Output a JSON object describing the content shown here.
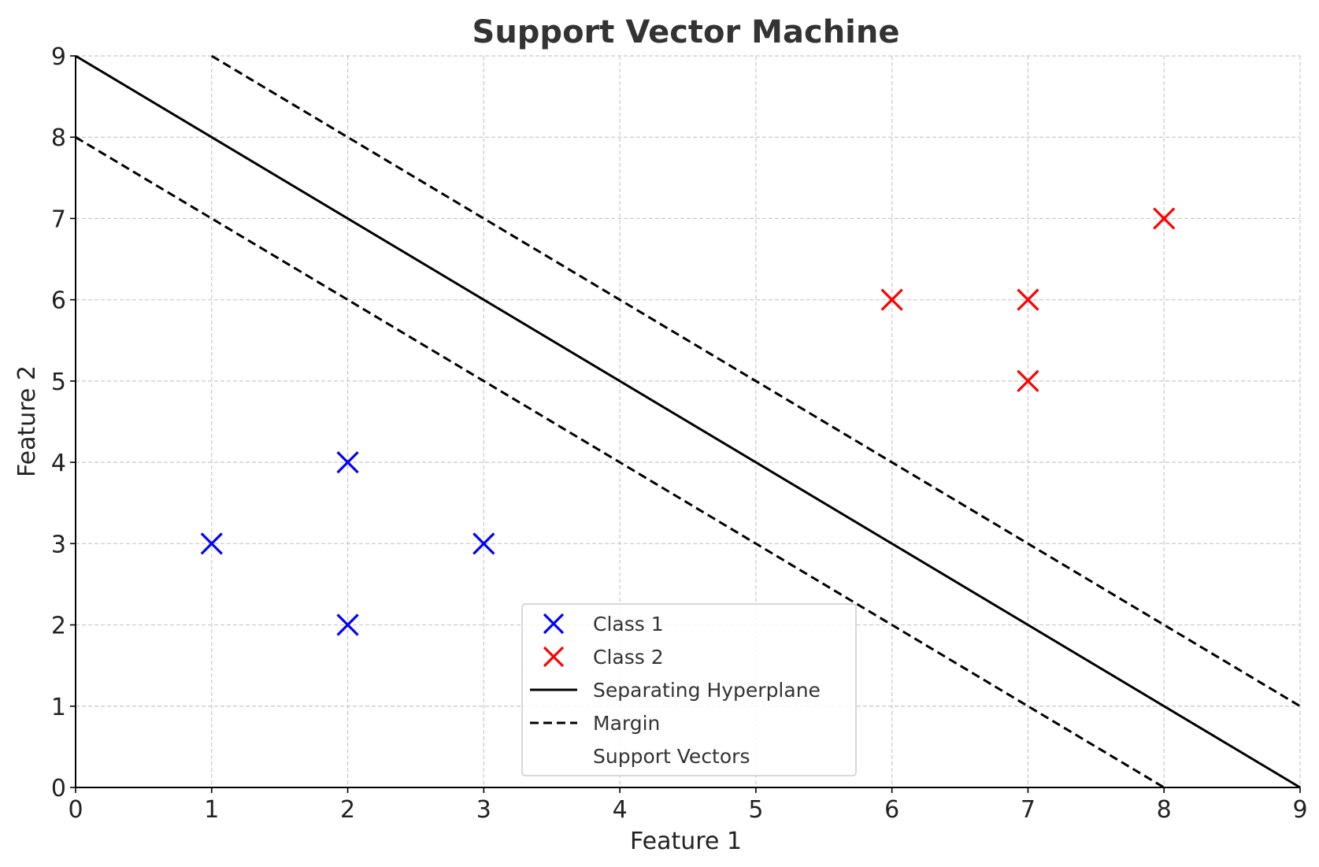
{
  "chart_data": {
    "type": "scatter",
    "title": "Support Vector Machine",
    "xlabel": "Feature 1",
    "ylabel": "Feature 2",
    "xlim": [
      0,
      9
    ],
    "ylim": [
      0,
      9
    ],
    "xticks": [
      0,
      1,
      2,
      3,
      4,
      5,
      6,
      7,
      8,
      9
    ],
    "yticks": [
      0,
      1,
      2,
      3,
      4,
      5,
      6,
      7,
      8,
      9
    ],
    "grid": true,
    "legend_position": "lower-center",
    "series": [
      {
        "name": "Class 1",
        "kind": "scatter",
        "marker": "x",
        "color": "#0000ff",
        "points": [
          [
            1,
            3
          ],
          [
            2,
            4
          ],
          [
            2,
            2
          ],
          [
            3,
            3
          ]
        ]
      },
      {
        "name": "Class 2",
        "kind": "scatter",
        "marker": "x",
        "color": "#ff0000",
        "points": [
          [
            6,
            6
          ],
          [
            7,
            6
          ],
          [
            7,
            5
          ],
          [
            8,
            7
          ]
        ]
      },
      {
        "name": "Separating Hyperplane",
        "kind": "line",
        "style": "solid",
        "color": "#000000",
        "x": [
          0,
          9
        ],
        "y": [
          9,
          0
        ]
      },
      {
        "name": "Margin",
        "kind": "line",
        "style": "dashed",
        "color": "#000000",
        "lines": [
          {
            "x": [
              0,
              8
            ],
            "y": [
              8,
              0
            ]
          },
          {
            "x": [
              1,
              9
            ],
            "y": [
              9,
              1
            ]
          }
        ]
      },
      {
        "name": "Support Vectors",
        "kind": "scatter",
        "marker": "none",
        "points": []
      }
    ]
  }
}
